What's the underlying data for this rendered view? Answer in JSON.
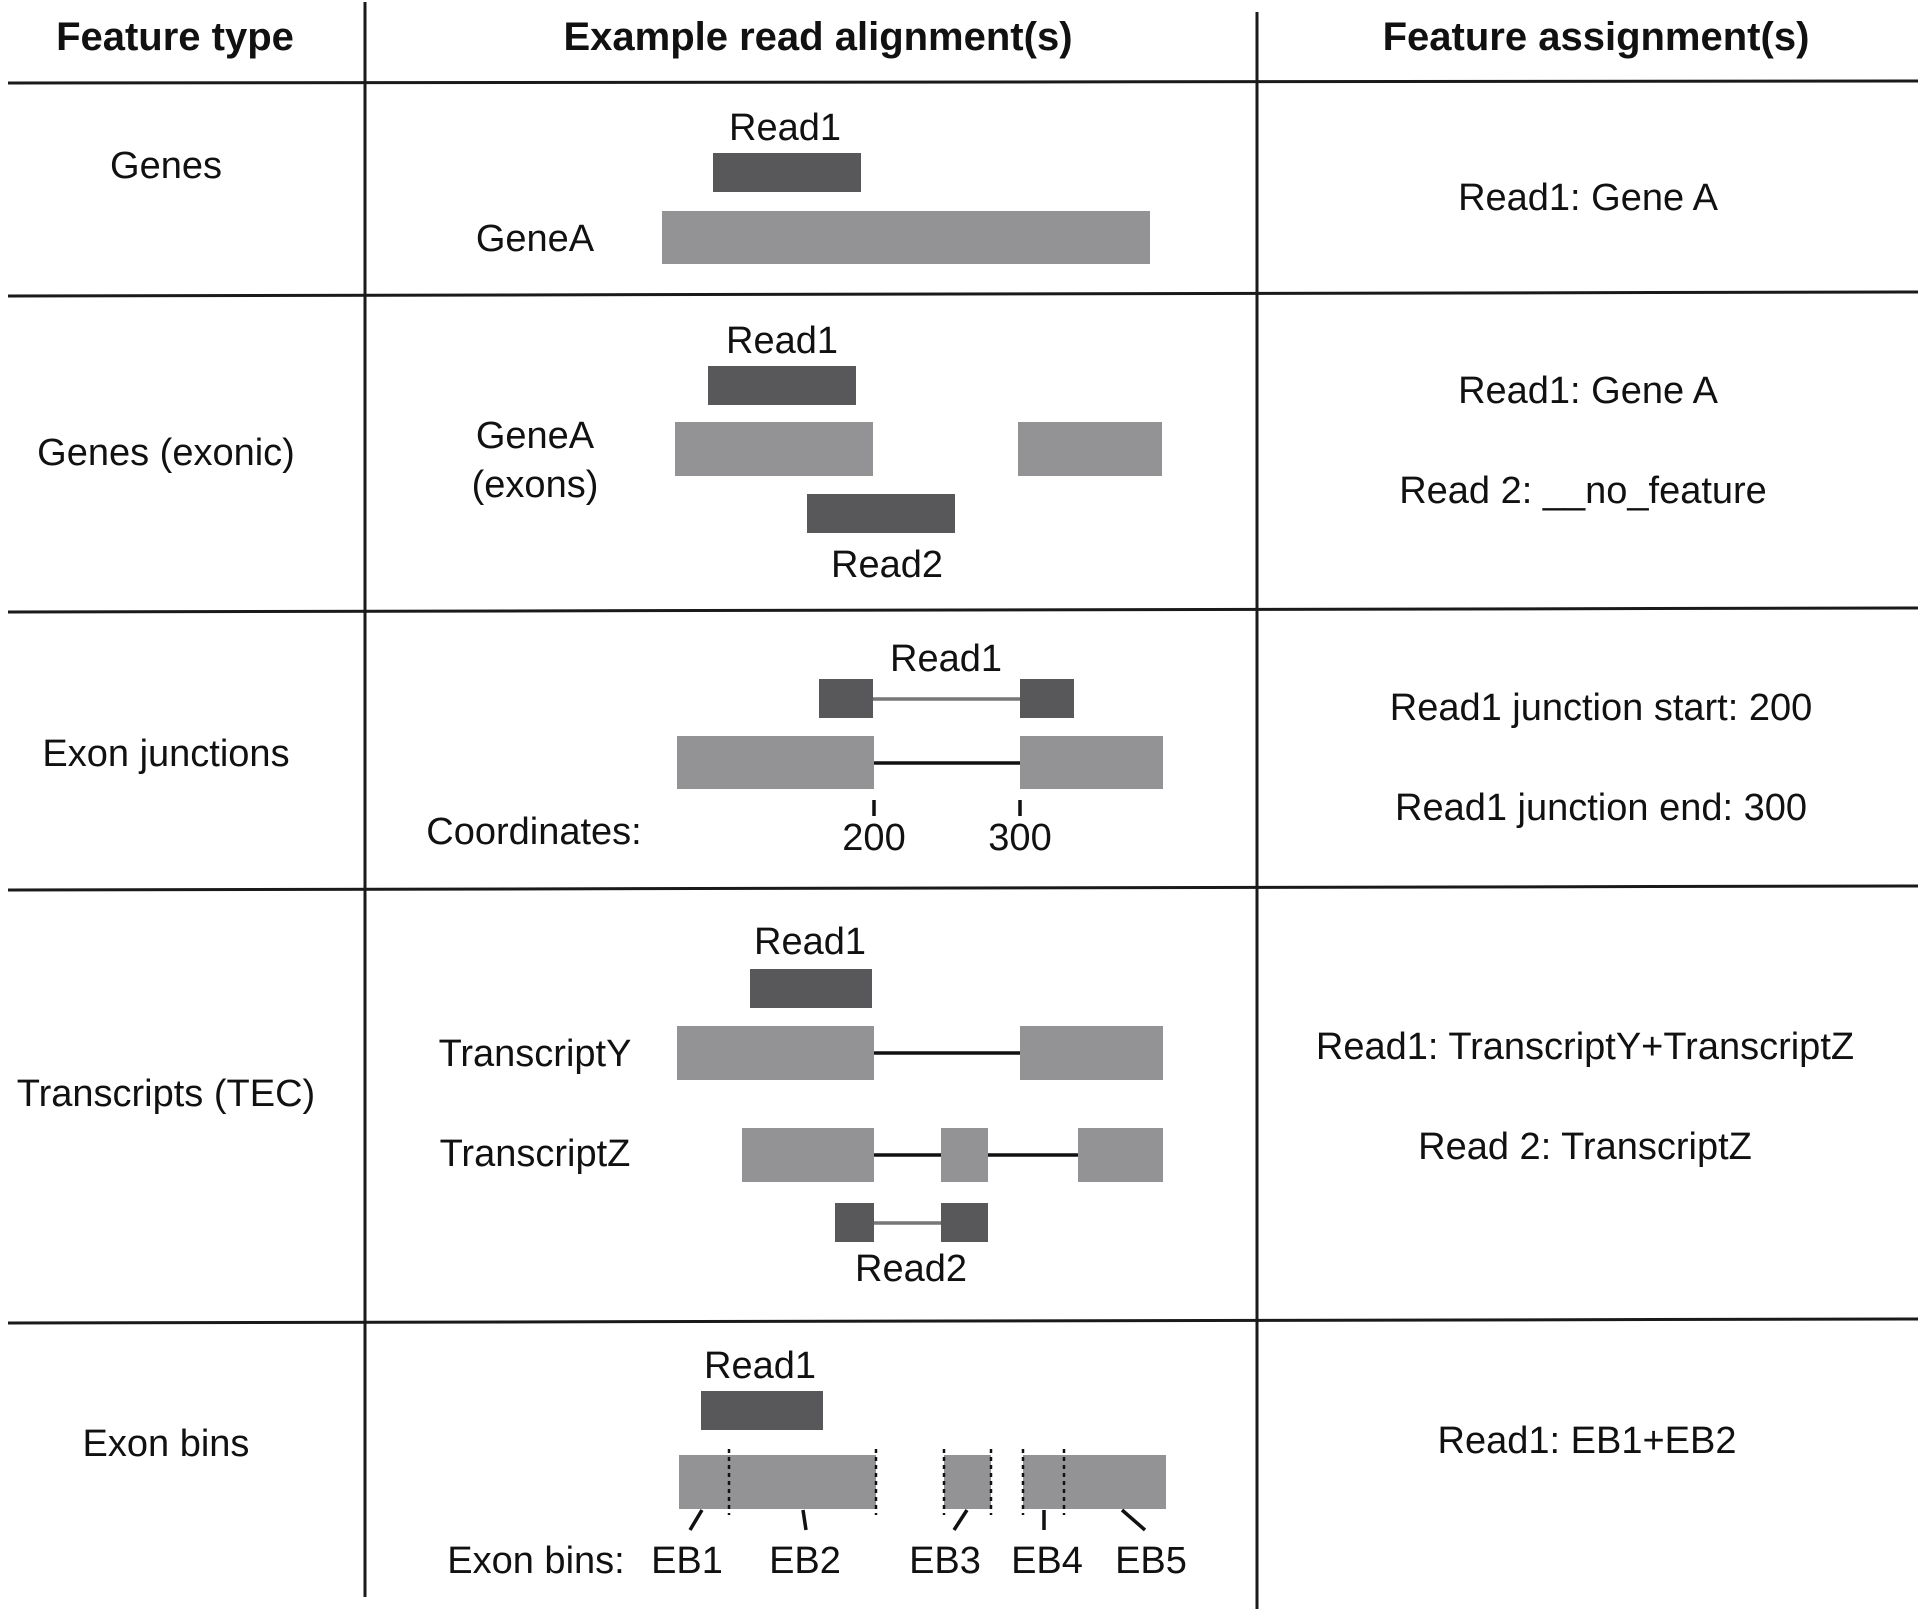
{
  "headers": {
    "feature_type": "Feature type",
    "alignment": "Example read alignment(s)",
    "assignment": "Feature assignment(s)"
  },
  "rows": {
    "genes": {
      "type": "Genes",
      "read1": "Read1",
      "gene_label": "GeneA",
      "assign1": "Read1: Gene A"
    },
    "exonic": {
      "type": "Genes (exonic)",
      "read1": "Read1",
      "read2": "Read2",
      "gene_label_line1": "GeneA",
      "gene_label_line2": "(exons)",
      "assign1": "Read1: Gene A",
      "assign2": "Read 2: __no_feature"
    },
    "junctions": {
      "type": "Exon junctions",
      "read1": "Read1",
      "coords_label": "Coordinates:",
      "coord_start": "200",
      "coord_end": "300",
      "assign1": "Read1 junction start: 200",
      "assign2": "Read1 junction end: 300"
    },
    "transcripts": {
      "type": "Transcripts (TEC)",
      "read1": "Read1",
      "read2": "Read2",
      "tx_y": "TranscriptY",
      "tx_z": "TranscriptZ",
      "assign1": "Read1: TranscriptY+TranscriptZ",
      "assign2": "Read 2: TranscriptZ"
    },
    "bins": {
      "type": "Exon bins",
      "read1": "Read1",
      "bins_label": "Exon bins:",
      "eb1": "EB1",
      "eb2": "EB2",
      "eb3": "EB3",
      "eb4": "EB4",
      "eb5": "EB5",
      "assign1": "Read1: EB1+EB2"
    }
  },
  "colors": {
    "gene_feature": "#939395",
    "read": "#58585a",
    "rules": "#1a1a1a"
  }
}
